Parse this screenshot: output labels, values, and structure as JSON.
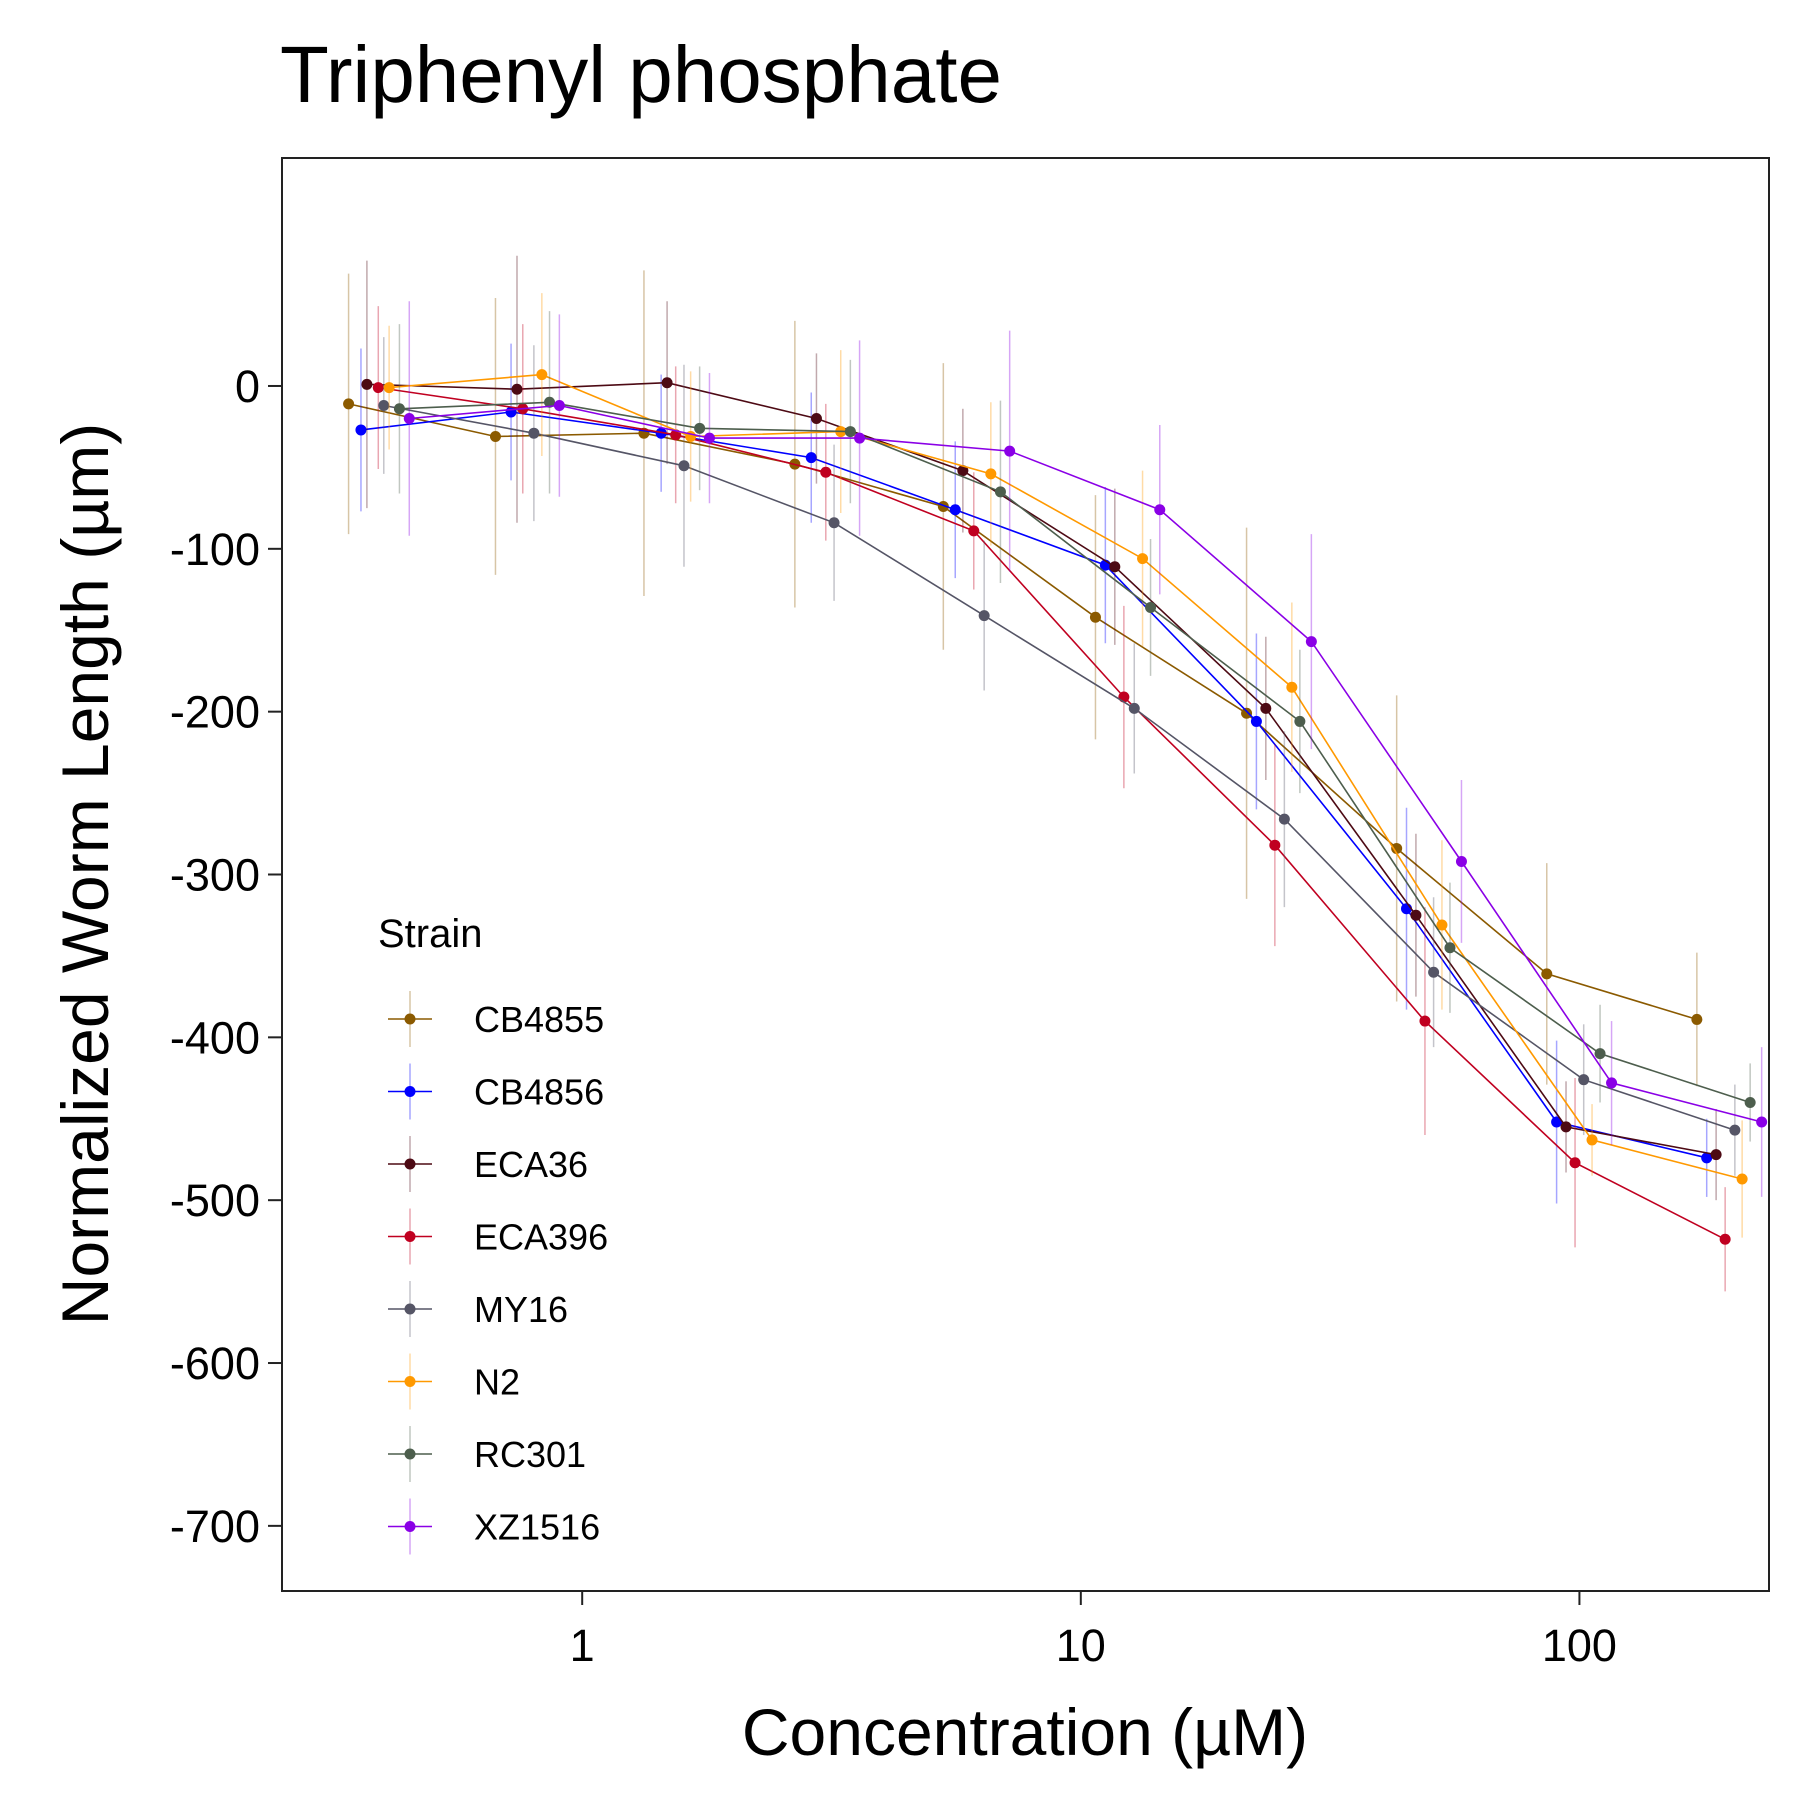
{
  "chart_data": {
    "type": "line",
    "title": "Triphenyl phosphate",
    "xlabel": "Concentration (µM)",
    "ylabel": "Normalized Worm Length (µm)",
    "x_scale": "log10",
    "xlim": [
      0.25,
      240
    ],
    "ylim": [
      -740,
      140
    ],
    "x_ticks": [
      1,
      10,
      100
    ],
    "x_tick_labels": [
      "1",
      "10",
      "100"
    ],
    "y_ticks": [
      0,
      -100,
      -200,
      -300,
      -400,
      -500,
      -600,
      -700
    ],
    "y_tick_labels": [
      "0",
      "-100",
      "-200",
      "-300",
      "-400",
      "-500",
      "-600",
      "-700"
    ],
    "grid": false,
    "legend": {
      "title": "Strain",
      "position": "bottom-left-inside"
    },
    "series": [
      {
        "name": "CB4855",
        "color": "#8B5A00",
        "points": [
          {
            "x": 0.34,
            "y": -11,
            "err": 80
          },
          {
            "x": 0.67,
            "y": -31,
            "err": 85
          },
          {
            "x": 1.33,
            "y": -29,
            "err": 100
          },
          {
            "x": 2.67,
            "y": -48,
            "err": 88
          },
          {
            "x": 5.3,
            "y": -74,
            "err": 88
          },
          {
            "x": 10.7,
            "y": -142,
            "err": 75
          },
          {
            "x": 21.5,
            "y": -201,
            "err": 114
          },
          {
            "x": 43,
            "y": -284,
            "err": 94
          },
          {
            "x": 86,
            "y": -361,
            "err": 68
          },
          {
            "x": 172,
            "y": -389,
            "err": 41
          }
        ]
      },
      {
        "name": "CB4856",
        "color": "#0000FF",
        "points": [
          {
            "x": 0.36,
            "y": -27,
            "err": 50
          },
          {
            "x": 0.72,
            "y": -16,
            "err": 42
          },
          {
            "x": 1.44,
            "y": -29,
            "err": 36
          },
          {
            "x": 2.88,
            "y": -44,
            "err": 40
          },
          {
            "x": 5.6,
            "y": -76,
            "err": 42
          },
          {
            "x": 11.2,
            "y": -110,
            "err": 48
          },
          {
            "x": 22.5,
            "y": -206,
            "err": 54
          },
          {
            "x": 45,
            "y": -321,
            "err": 62
          },
          {
            "x": 90,
            "y": -452,
            "err": 50
          },
          {
            "x": 180,
            "y": -474,
            "err": 24
          }
        ]
      },
      {
        "name": "ECA36",
        "color": "#4D0A14",
        "points": [
          {
            "x": 0.37,
            "y": 1,
            "err": 76
          },
          {
            "x": 0.74,
            "y": -2,
            "err": 82
          },
          {
            "x": 1.48,
            "y": 2,
            "err": 50
          },
          {
            "x": 2.95,
            "y": -20,
            "err": 40
          },
          {
            "x": 5.8,
            "y": -52,
            "err": 38
          },
          {
            "x": 11.7,
            "y": -111,
            "err": 48
          },
          {
            "x": 23.5,
            "y": -198,
            "err": 44
          },
          {
            "x": 47,
            "y": -325,
            "err": 50
          },
          {
            "x": 94,
            "y": -455,
            "err": 28
          },
          {
            "x": 188,
            "y": -472,
            "err": 28
          }
        ]
      },
      {
        "name": "ECA396",
        "color": "#C00020",
        "points": [
          {
            "x": 0.39,
            "y": -1,
            "err": 50
          },
          {
            "x": 0.76,
            "y": -14,
            "err": 52
          },
          {
            "x": 1.54,
            "y": -30,
            "err": 42
          },
          {
            "x": 3.08,
            "y": -53,
            "err": 42
          },
          {
            "x": 6.1,
            "y": -89,
            "err": 36
          },
          {
            "x": 12.2,
            "y": -191,
            "err": 56
          },
          {
            "x": 24.5,
            "y": -282,
            "err": 62
          },
          {
            "x": 49,
            "y": -390,
            "err": 70
          },
          {
            "x": 98,
            "y": -477,
            "err": 52
          },
          {
            "x": 196,
            "y": -524,
            "err": 32
          }
        ]
      },
      {
        "name": "MY16",
        "color": "#555566",
        "points": [
          {
            "x": 0.4,
            "y": -12,
            "err": 42
          },
          {
            "x": 0.8,
            "y": -29,
            "err": 54
          },
          {
            "x": 1.6,
            "y": -49,
            "err": 62
          },
          {
            "x": 3.2,
            "y": -84,
            "err": 48
          },
          {
            "x": 6.4,
            "y": -141,
            "err": 46
          },
          {
            "x": 12.8,
            "y": -198,
            "err": 40
          },
          {
            "x": 25.6,
            "y": -266,
            "err": 54
          },
          {
            "x": 51,
            "y": -360,
            "err": 46
          },
          {
            "x": 102,
            "y": -426,
            "err": 34
          },
          {
            "x": 205,
            "y": -457,
            "err": 28
          }
        ]
      },
      {
        "name": "N2",
        "color": "#FF9900",
        "points": [
          {
            "x": 0.41,
            "y": -1,
            "err": 38
          },
          {
            "x": 0.83,
            "y": 7,
            "err": 50
          },
          {
            "x": 1.65,
            "y": -31,
            "err": 40
          },
          {
            "x": 3.3,
            "y": -28,
            "err": 50
          },
          {
            "x": 6.6,
            "y": -54,
            "err": 44
          },
          {
            "x": 13.3,
            "y": -106,
            "err": 54
          },
          {
            "x": 26.5,
            "y": -185,
            "err": 52
          },
          {
            "x": 53,
            "y": -331,
            "err": 52
          },
          {
            "x": 106,
            "y": -463,
            "err": 22
          },
          {
            "x": 212,
            "y": -487,
            "err": 36
          }
        ]
      },
      {
        "name": "RC301",
        "color": "#4D5E4D",
        "points": [
          {
            "x": 0.43,
            "y": -14,
            "err": 52
          },
          {
            "x": 0.86,
            "y": -10,
            "err": 56
          },
          {
            "x": 1.72,
            "y": -26,
            "err": 38
          },
          {
            "x": 3.45,
            "y": -28,
            "err": 44
          },
          {
            "x": 6.9,
            "y": -65,
            "err": 56
          },
          {
            "x": 13.8,
            "y": -136,
            "err": 42
          },
          {
            "x": 27.5,
            "y": -206,
            "err": 44
          },
          {
            "x": 55,
            "y": -345,
            "err": 40
          },
          {
            "x": 110,
            "y": -410,
            "err": 30
          },
          {
            "x": 220,
            "y": -440,
            "err": 24
          }
        ]
      },
      {
        "name": "XZ1516",
        "color": "#8A00E6",
        "points": [
          {
            "x": 0.45,
            "y": -20,
            "err": 72
          },
          {
            "x": 0.9,
            "y": -12,
            "err": 56
          },
          {
            "x": 1.8,
            "y": -32,
            "err": 40
          },
          {
            "x": 3.6,
            "y": -32,
            "err": 60
          },
          {
            "x": 7.2,
            "y": -40,
            "err": 74
          },
          {
            "x": 14.4,
            "y": -76,
            "err": 52
          },
          {
            "x": 29,
            "y": -157,
            "err": 66
          },
          {
            "x": 58,
            "y": -292,
            "err": 50
          },
          {
            "x": 116,
            "y": -428,
            "err": 38
          },
          {
            "x": 232,
            "y": -452,
            "err": 46
          }
        ]
      }
    ]
  }
}
